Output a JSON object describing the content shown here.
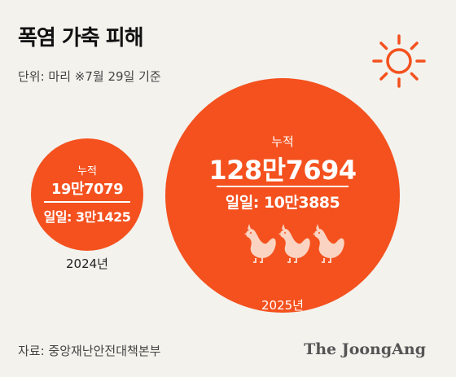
{
  "title": "폭염 가축 피해",
  "unit_note": "단위: 마리   ※7월 29일 기준",
  "colors": {
    "bubble": "#f4511e",
    "background": "#f3f2ed",
    "sun": "#f4511e"
  },
  "icons": [
    "sun-icon",
    "chicken-icon"
  ],
  "chart_data": {
    "type": "bubble",
    "series": [
      {
        "year": "2024년",
        "cumulative": 197079,
        "daily": 31425,
        "cumulative_label": "19만7079",
        "daily_label": "3만1425"
      },
      {
        "year": "2025년",
        "cumulative": 1287694,
        "daily": 103885,
        "cumulative_label": "128만7694",
        "daily_label": "10만3885"
      }
    ],
    "cumulative_label": "누적",
    "daily_label": "일일:"
  },
  "source": "자료: 중앙재난안전대책본부",
  "brand": "The JoongAng"
}
